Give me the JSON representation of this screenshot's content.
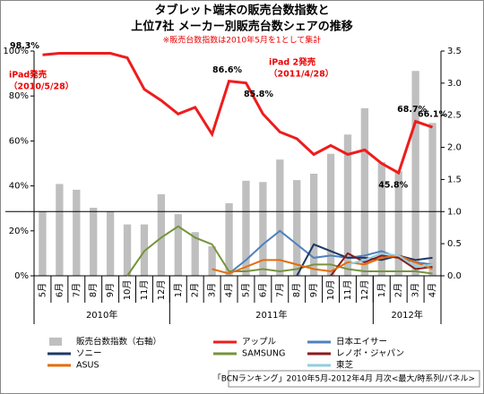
{
  "chart_data": {
    "type": "combo",
    "title": [
      "タブレット端末の販売台数指数と",
      "上位7社 メーカー別販売台数シェアの推移"
    ],
    "subtitle": "※販売台数指数は2010年5月を1として集計",
    "footer": "「BCNランキング」2010年5月-2012年4月 月次<最大/時系列/パネル>",
    "categories": [
      "5月",
      "6月",
      "7月",
      "8月",
      "9月",
      "10月",
      "11月",
      "12月",
      "1月",
      "2月",
      "3月",
      "4月",
      "5月",
      "6月",
      "7月",
      "8月",
      "9月",
      "10月",
      "11月",
      "12月",
      "1月",
      "2月",
      "3月",
      "4月"
    ],
    "x_groups": [
      "2010年",
      "2011年",
      "2012年"
    ],
    "ylim": [
      0,
      100
    ],
    "yticks": [
      {
        "value": 0,
        "label": "0%"
      },
      {
        "value": 20,
        "label": "20%"
      },
      {
        "value": 40,
        "label": "40%"
      },
      {
        "value": 60,
        "label": "60%"
      },
      {
        "value": 80,
        "label": "80%"
      },
      {
        "value": 100,
        "label": "100%"
      }
    ],
    "y2lim": [
      0,
      3.5
    ],
    "y2ticks": [
      {
        "value": 0,
        "label": "0.0"
      },
      {
        "value": 0.5,
        "label": "0.5"
      },
      {
        "value": 1,
        "label": "1.0"
      },
      {
        "value": 1.5,
        "label": "1.5"
      },
      {
        "value": 2,
        "label": "2.0"
      },
      {
        "value": 2.5,
        "label": "2.5"
      },
      {
        "value": 3,
        "label": "3.0"
      },
      {
        "value": 3.5,
        "label": "3.5"
      }
    ],
    "y2_refline": 1,
    "annotations": [
      [
        "iPad発売",
        "（2010/5/28）"
      ],
      [
        "iPad 2発売",
        "（2011/4/28）"
      ]
    ],
    "series": [
      {
        "name": "販売台数指数（右軸）",
        "type": "bar",
        "axis": "y2",
        "color": "#bfbfbf",
        "values": [
          1.0,
          1.43,
          1.34,
          1.06,
          1.0,
          0.8,
          0.8,
          1.27,
          0.96,
          0.68,
          0.46,
          1.13,
          1.48,
          1.46,
          1.81,
          1.49,
          1.59,
          1.9,
          2.2,
          2.61,
          1.77,
          1.63,
          3.19,
          2.38
        ]
      },
      {
        "name": "アップル",
        "type": "line",
        "color": "#ee1c1c",
        "values": [
          98.3,
          99,
          99,
          99,
          99,
          97,
          83,
          78,
          72,
          75,
          63,
          86.6,
          85.8,
          72,
          64,
          61,
          54,
          58,
          54,
          56,
          50,
          45.8,
          68.7,
          66.1
        ],
        "value_labels": [
          "98.3%",
          null,
          null,
          null,
          null,
          null,
          null,
          null,
          null,
          null,
          null,
          "86.6%",
          "85.8%",
          null,
          null,
          null,
          null,
          null,
          null,
          null,
          null,
          "45.8%",
          "68.7%",
          "66.1%"
        ]
      },
      {
        "name": "日本エイサー",
        "type": "line",
        "color": "#4f81bd",
        "values": [
          null,
          null,
          null,
          null,
          null,
          null,
          null,
          null,
          null,
          null,
          null,
          1,
          7,
          14,
          20,
          14,
          8,
          9,
          8,
          9,
          11,
          8,
          6,
          5
        ]
      },
      {
        "name": "SAMSUNG",
        "type": "line",
        "color": "#77933c",
        "values": [
          null,
          null,
          null,
          null,
          null,
          0,
          11,
          17,
          22,
          17,
          14,
          2,
          2,
          3,
          2,
          3,
          5,
          5,
          3,
          2,
          2,
          2,
          2,
          1
        ]
      },
      {
        "name": "ソニー",
        "type": "line",
        "color": "#1f3864",
        "values": [
          null,
          null,
          null,
          null,
          null,
          null,
          null,
          null,
          null,
          null,
          null,
          null,
          null,
          null,
          null,
          0,
          14,
          11,
          8,
          8,
          7,
          9,
          7,
          8
        ]
      },
      {
        "name": "レノボ・ジャパン",
        "type": "line",
        "color": "#8b1a1c",
        "values": [
          null,
          null,
          null,
          null,
          null,
          null,
          null,
          null,
          null,
          null,
          null,
          null,
          null,
          null,
          null,
          null,
          null,
          0,
          10,
          6,
          9,
          8,
          3,
          4
        ]
      },
      {
        "name": "ASUS",
        "type": "line",
        "color": "#e46c0a",
        "values": [
          null,
          null,
          null,
          null,
          null,
          null,
          null,
          null,
          null,
          null,
          3,
          1,
          4,
          7,
          7,
          5,
          3,
          2,
          6,
          5,
          8,
          9,
          6,
          3
        ]
      },
      {
        "name": "東芝",
        "type": "line",
        "color": "#93cddd",
        "values": [
          null,
          null,
          null,
          null,
          null,
          null,
          null,
          null,
          null,
          null,
          null,
          null,
          null,
          null,
          null,
          null,
          null,
          null,
          5,
          7,
          10,
          9,
          4,
          5
        ]
      }
    ]
  }
}
